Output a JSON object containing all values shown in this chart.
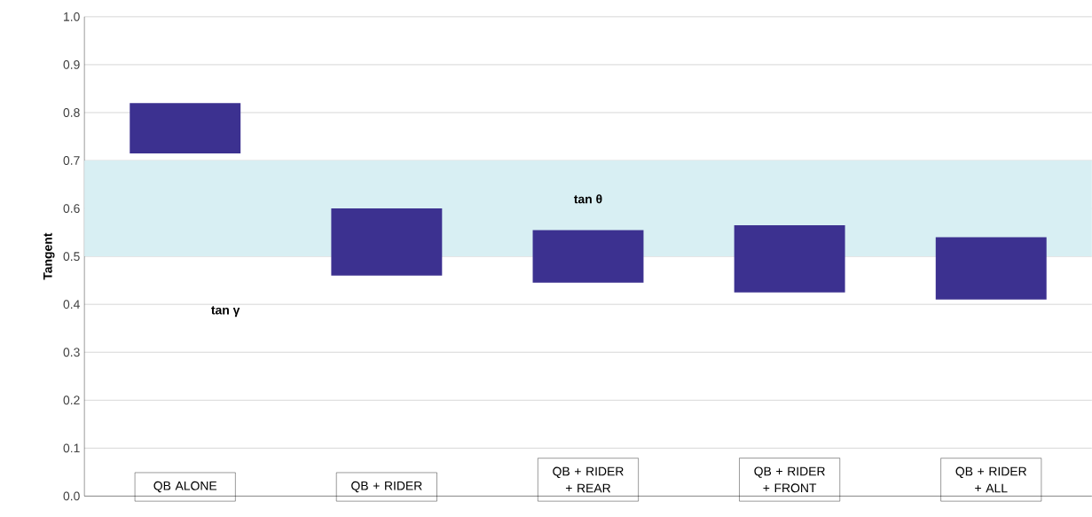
{
  "chart_data": {
    "type": "bar",
    "ylabel": "Tangent",
    "categories": [
      "QB ALONE",
      "QB + RIDER",
      "QB + RIDER + REAR",
      "QB + RIDER + FRONT",
      "QB + RIDER + ALL"
    ],
    "base": [
      0.715,
      0.46,
      0.445,
      0.425,
      0.41
    ],
    "values": [
      0.105,
      0.14,
      0.11,
      0.14,
      0.13
    ],
    "color": "#3c3190",
    "ylim": [
      0,
      1
    ],
    "yticks": [
      {
        "value": 0,
        "label": "0.0"
      },
      0.1,
      0.2,
      0.3,
      0.4,
      0.5,
      0.6,
      0.7,
      0.8,
      0.9,
      {
        "value": 1,
        "label": "1.0"
      }
    ],
    "grid": "y",
    "bands": [
      {
        "axis": "y",
        "from": 0.5,
        "to": 0.7,
        "label": "tan θ",
        "color": "#d8eff3"
      }
    ],
    "annotations": [
      "tan γ"
    ]
  }
}
